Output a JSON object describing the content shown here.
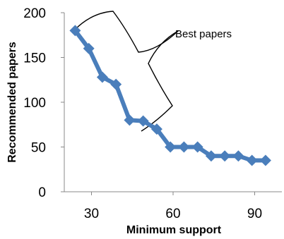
{
  "chart_data": {
    "type": "line",
    "xlabel": "Minimum support",
    "ylabel": "Recommended papers",
    "xlim": [
      20,
      100
    ],
    "ylim": [
      0,
      200
    ],
    "x_ticks": [
      30,
      60,
      90
    ],
    "y_ticks": [
      0,
      50,
      100,
      150,
      200
    ],
    "grid": false,
    "legend": "none",
    "annotation": "Best papers",
    "series": [
      {
        "color": "#4a7ebb",
        "marker": "diamond",
        "x": [
          24,
          29,
          34,
          39,
          44,
          49,
          54,
          59,
          64,
          69,
          74,
          79,
          84,
          89,
          94
        ],
        "values": [
          180,
          160,
          128,
          120,
          80,
          79,
          70,
          50,
          50,
          50,
          40,
          40,
          40,
          35,
          35
        ]
      }
    ]
  },
  "x_tick_labels": [
    "30",
    "60",
    "90"
  ],
  "y_tick_labels": [
    "0",
    "50",
    "100",
    "150",
    "200"
  ]
}
